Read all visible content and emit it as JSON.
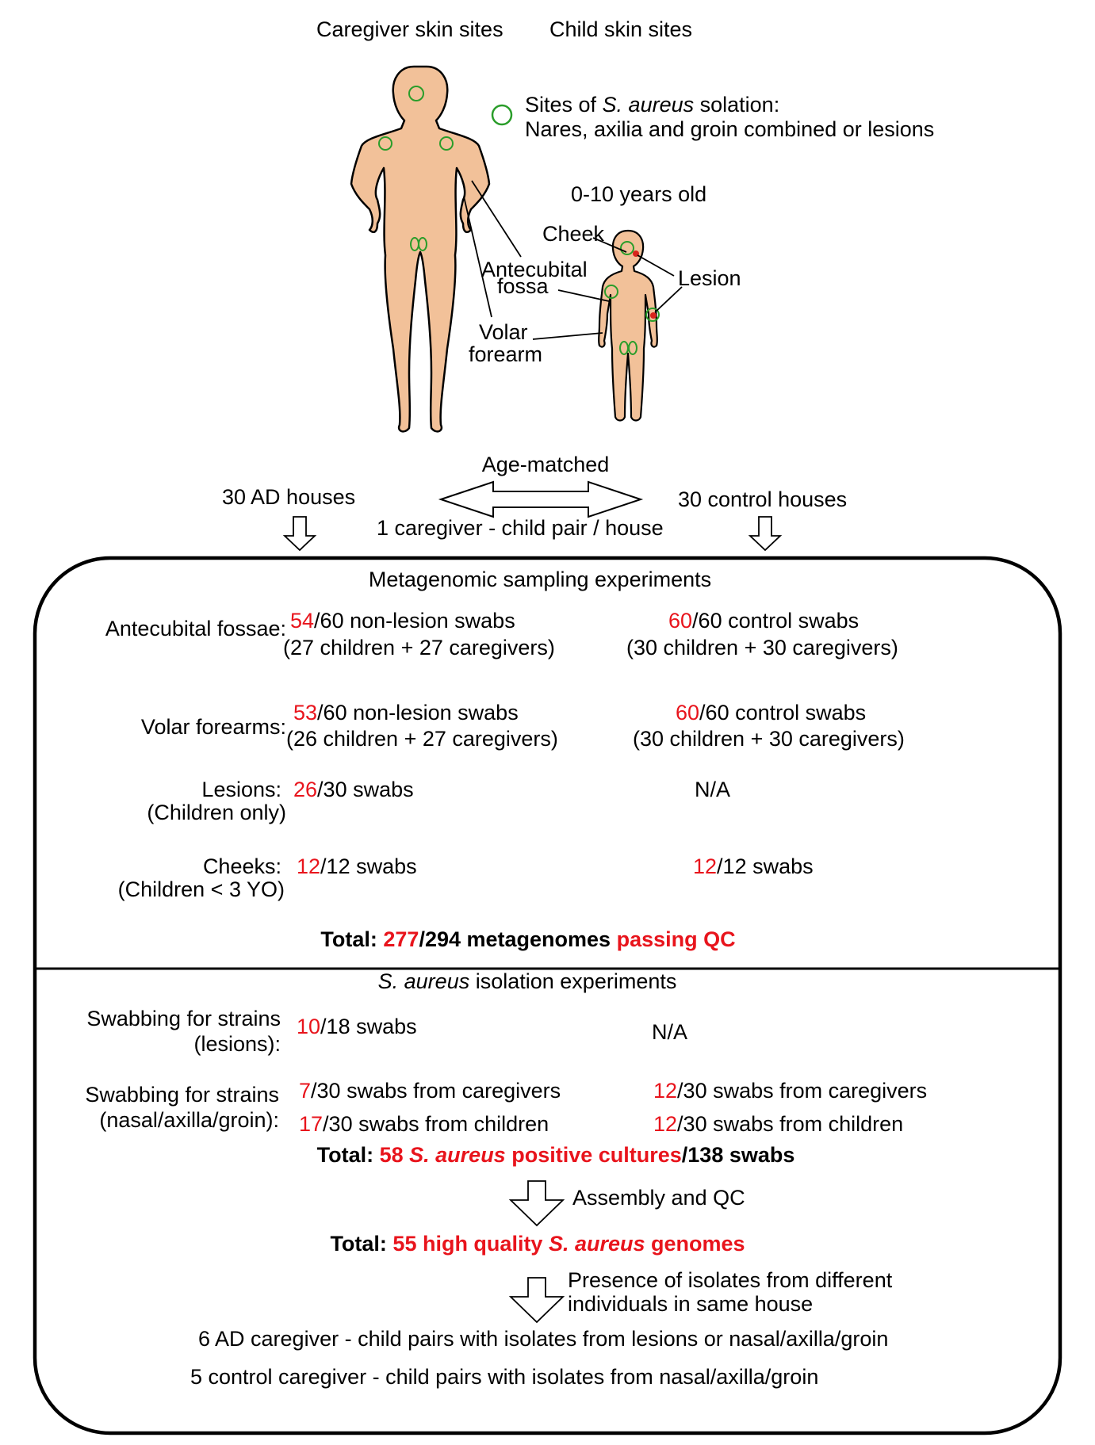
{
  "header": {
    "caregiver_sites": "Caregiver skin sites",
    "child_sites": "Child skin sites"
  },
  "legend": {
    "line1_pre": "Sites of ",
    "line1_species": "S. aureus",
    "line1_post": " solation:",
    "line2": "Nares, axilia and groin combined or lesions",
    "marker_color": "#2a9d2a"
  },
  "figure_labels": {
    "age": "0-10 years old",
    "cheek": "Cheek",
    "antecubital_1": "Antecubital",
    "antecubital_2": "fossa",
    "lesion": "Lesion",
    "volar_1": "Volar",
    "volar_2": "forearm"
  },
  "design": {
    "age_matched": "Age-matched",
    "ad_houses": "30 AD houses",
    "control_houses": "30 control houses",
    "pair_note": "1 caregiver - child pair / house"
  },
  "metagenomic": {
    "heading": "Metagenomic sampling experiments",
    "rows": [
      {
        "label": "Antecubital fossae:",
        "sublabel": "",
        "ad_count": "54",
        "ad_rest": "/60 non-lesion swabs",
        "ad_detail": "(27 children + 27 caregivers)",
        "ctrl_count": "60",
        "ctrl_rest": "/60 control swabs",
        "ctrl_detail": "(30 children + 30 caregivers)"
      },
      {
        "label": "Volar forearms:",
        "sublabel": "",
        "ad_count": "53",
        "ad_rest": "/60 non-lesion swabs",
        "ad_detail": "(26 children + 27 caregivers)",
        "ctrl_count": "60",
        "ctrl_rest": "/60 control swabs",
        "ctrl_detail": "(30 children + 30 caregivers)"
      },
      {
        "label": "Lesions:",
        "sublabel": "(Children only)",
        "ad_count": "26",
        "ad_rest": "/30 swabs",
        "ctrl_text": "N/A"
      },
      {
        "label": "Cheeks:",
        "sublabel": "(Children < 3 YO)",
        "ad_count": "12",
        "ad_rest": "/12 swabs",
        "ctrl_count": "12",
        "ctrl_rest": "/12 swabs"
      }
    ],
    "total_label": "Total: ",
    "total_count": "277",
    "total_rest": "/294 metagenomes ",
    "total_suffix": "passing QC"
  },
  "isolation": {
    "heading_species": "S. aureus",
    "heading_rest": " isolation experiments",
    "lesion_label_1": "Swabbing for strains",
    "lesion_label_2": "(lesions):",
    "lesion_count": "10",
    "lesion_rest": "/18 swabs",
    "lesion_ctrl": "N/A",
    "nasal_label_1": "Swabbing for strains",
    "nasal_label_2": "(nasal/axilla/groin):",
    "ad_caregiver_count": "7",
    "ad_caregiver_rest": "/30 swabs from caregivers",
    "ad_children_count": "17",
    "ad_children_rest": "/30 swabs from children",
    "ctrl_caregiver_count": "12",
    "ctrl_caregiver_rest": "/30 swabs from caregivers",
    "ctrl_children_count": "12",
    "ctrl_children_rest": "/30 swabs from children",
    "total_label": "Total: ",
    "total_count_text": "58 ",
    "total_species": "S. aureus",
    "total_positive": " positive cultures",
    "total_rest": "/138 swabs",
    "assembly_step": "Assembly and QC",
    "genomes_label": "Total: ",
    "genomes_count": "55 high quality ",
    "genomes_species": "S. aureus",
    "genomes_rest": " genomes",
    "presence_1": "Presence of isolates from different",
    "presence_2": "individuals in same house",
    "ad_pairs": "6 AD caregiver - child pairs with isolates from lesions or nasal/axilla/groin",
    "control_pairs": "5  control caregiver - child pairs with isolates from nasal/axilla/groin"
  },
  "colors": {
    "highlight": "#e8141c",
    "skin": "#f2c199",
    "site_circle": "#2a9d2a",
    "lesion_dot": "#d8251c"
  }
}
